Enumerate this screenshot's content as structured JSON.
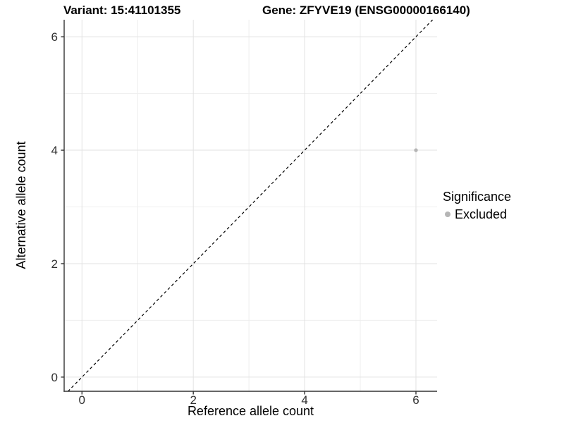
{
  "chart_data": {
    "type": "scatter",
    "title_left": "Variant: 15:41101355",
    "title_right": "Gene: ZFYVE19 (ENSG00000166140)",
    "xlabel": "Reference allele count",
    "ylabel": "Alternative allele count",
    "xlim": [
      -0.32,
      6.38
    ],
    "ylim": [
      -0.25,
      6.3
    ],
    "x_tick_values": [
      0,
      2,
      4,
      6
    ],
    "x_tick_labels": [
      "0",
      "2",
      "4",
      "6"
    ],
    "y_tick_values": [
      0,
      2,
      4,
      6
    ],
    "y_tick_labels": [
      "0",
      "2",
      "4",
      "6"
    ],
    "x_minor_gridlines": [
      1,
      3,
      5
    ],
    "y_minor_gridlines": [
      1,
      3,
      5
    ],
    "grid": "on",
    "points": [
      {
        "x": 6,
        "y": 4,
        "series": "Excluded"
      }
    ],
    "identity_line": {
      "slope": 1,
      "intercept": 0,
      "style": "dashed"
    },
    "legend": {
      "title": "Significance",
      "position": "right",
      "items": [
        {
          "label": "Excluded",
          "color": "#b5b5b5"
        }
      ]
    },
    "colors": {
      "background": "#ffffff",
      "point": "#b5b5b5",
      "grid_major": "#e2e2e2",
      "grid_minor": "#eeeeee",
      "axis": "#333333",
      "identity_line": "#000000",
      "tick_label": "#303030"
    }
  }
}
